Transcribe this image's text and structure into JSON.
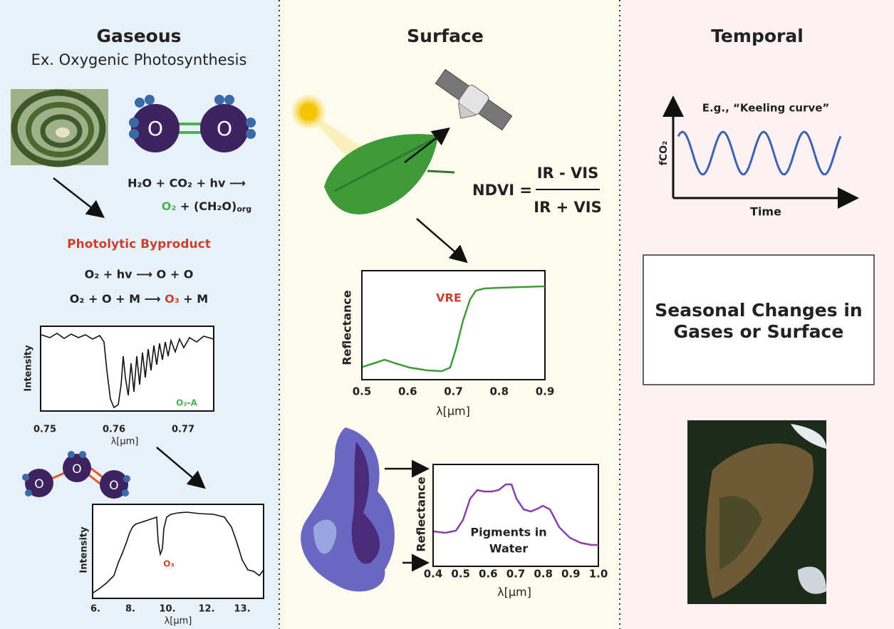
{
  "gaseous": {
    "title": "Gaseous",
    "subtitle": "Ex. Oxygenic Photosynthesis",
    "o2_molecule": [
      "O",
      "O"
    ],
    "reaction": {
      "line1": "H₂O + CO₂ + hv ⟶",
      "product_o2": "O₂",
      "product_rest": "+ (CH₂O)",
      "product_sub": "org"
    },
    "photolytic": {
      "title": "Photolytic Byproduct",
      "eq1": "O₂ + hv ⟶ O + O",
      "eq2_start": "O₂ + O + M ⟶",
      "eq2_o3": "O₃",
      "eq2_end": "+ M"
    },
    "o2_spectrum": {
      "ylabel": "Intensity",
      "annotation": "O₂-A",
      "xticks": [
        "0.75",
        "0.76",
        "0.77"
      ],
      "xlabel": "λ[μm]"
    },
    "o3_molecule": [
      "O",
      "O",
      "O"
    ],
    "o3_spectrum": {
      "ylabel": "Intensity",
      "annotation": "O₃",
      "xticks": [
        "6.",
        "8.",
        "10.",
        "12.",
        "13."
      ],
      "xlabel": "λ[μm]"
    }
  },
  "surface": {
    "title": "Surface",
    "ndvi": {
      "label": "NDVI =",
      "numerator": "IR - VIS",
      "denominator": "IR + VIS"
    },
    "leaf_spectrum": {
      "ylabel": "Reflectance",
      "annotation": "VRE",
      "xticks": [
        "0.5",
        "0.6",
        "0.7",
        "0.8",
        "0.9"
      ],
      "xlabel": "λ[μm]"
    },
    "water_spectrum": {
      "ylabel": "Reflectance",
      "annotation": [
        "Pigments in",
        "Water"
      ],
      "xticks": [
        "0.4",
        "0.5",
        "0.6",
        "0.7",
        "0.8",
        "0.9",
        "1.0"
      ],
      "xlabel": "λ[μm]"
    }
  },
  "temporal": {
    "title": "Temporal",
    "keeling": {
      "caption": "E.g., “Keeling curve”",
      "ylabel": "fCO₂",
      "xlabel": "Time"
    },
    "box": [
      "Seasonal Changes in",
      "Gases or Surface"
    ]
  }
}
